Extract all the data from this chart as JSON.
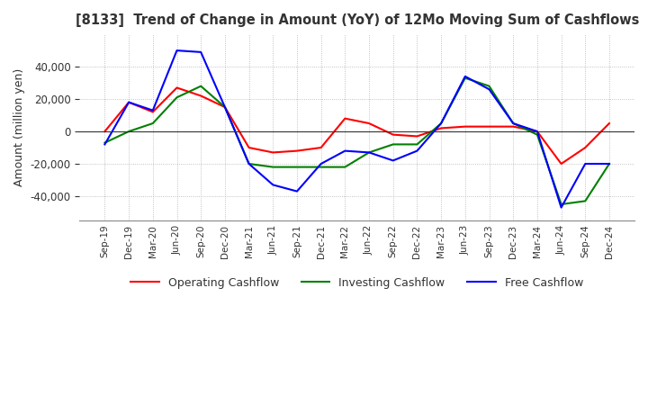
{
  "title": "[8133]  Trend of Change in Amount (YoY) of 12Mo Moving Sum of Cashflows",
  "ylabel": "Amount (million yen)",
  "ylim": [
    -55000,
    60000
  ],
  "yticks": [
    -40000,
    -20000,
    0,
    20000,
    40000
  ],
  "x_labels": [
    "Sep-19",
    "Dec-19",
    "Mar-20",
    "Jun-20",
    "Sep-20",
    "Dec-20",
    "Mar-21",
    "Jun-21",
    "Sep-21",
    "Dec-21",
    "Mar-22",
    "Jun-22",
    "Sep-22",
    "Dec-22",
    "Mar-23",
    "Jun-23",
    "Sep-23",
    "Dec-23",
    "Mar-24",
    "Jun-24",
    "Sep-24",
    "Dec-24"
  ],
  "operating": [
    0,
    18000,
    12000,
    27000,
    22000,
    15000,
    -10000,
    -13000,
    -12000,
    -10000,
    8000,
    5000,
    -2000,
    -3000,
    2000,
    3000,
    3000,
    3000,
    0,
    -20000,
    -10000,
    5000
  ],
  "investing": [
    -7000,
    0,
    5000,
    21000,
    28000,
    15000,
    -20000,
    -22000,
    -22000,
    -22000,
    -22000,
    -13000,
    -8000,
    -8000,
    5000,
    33000,
    28000,
    5000,
    -2000,
    -45000,
    -43000,
    -20000
  ],
  "free": [
    -8000,
    18000,
    13000,
    50000,
    49000,
    15000,
    -20000,
    -33000,
    -37000,
    -20000,
    -12000,
    -13000,
    -18000,
    -12000,
    5000,
    34000,
    26000,
    5000,
    0,
    -47000,
    -20000,
    -20000
  ],
  "operating_color": "#ff0000",
  "investing_color": "#008000",
  "free_color": "#0000ff",
  "bg_color": "#ffffff",
  "grid_color": "#b0b0b0"
}
